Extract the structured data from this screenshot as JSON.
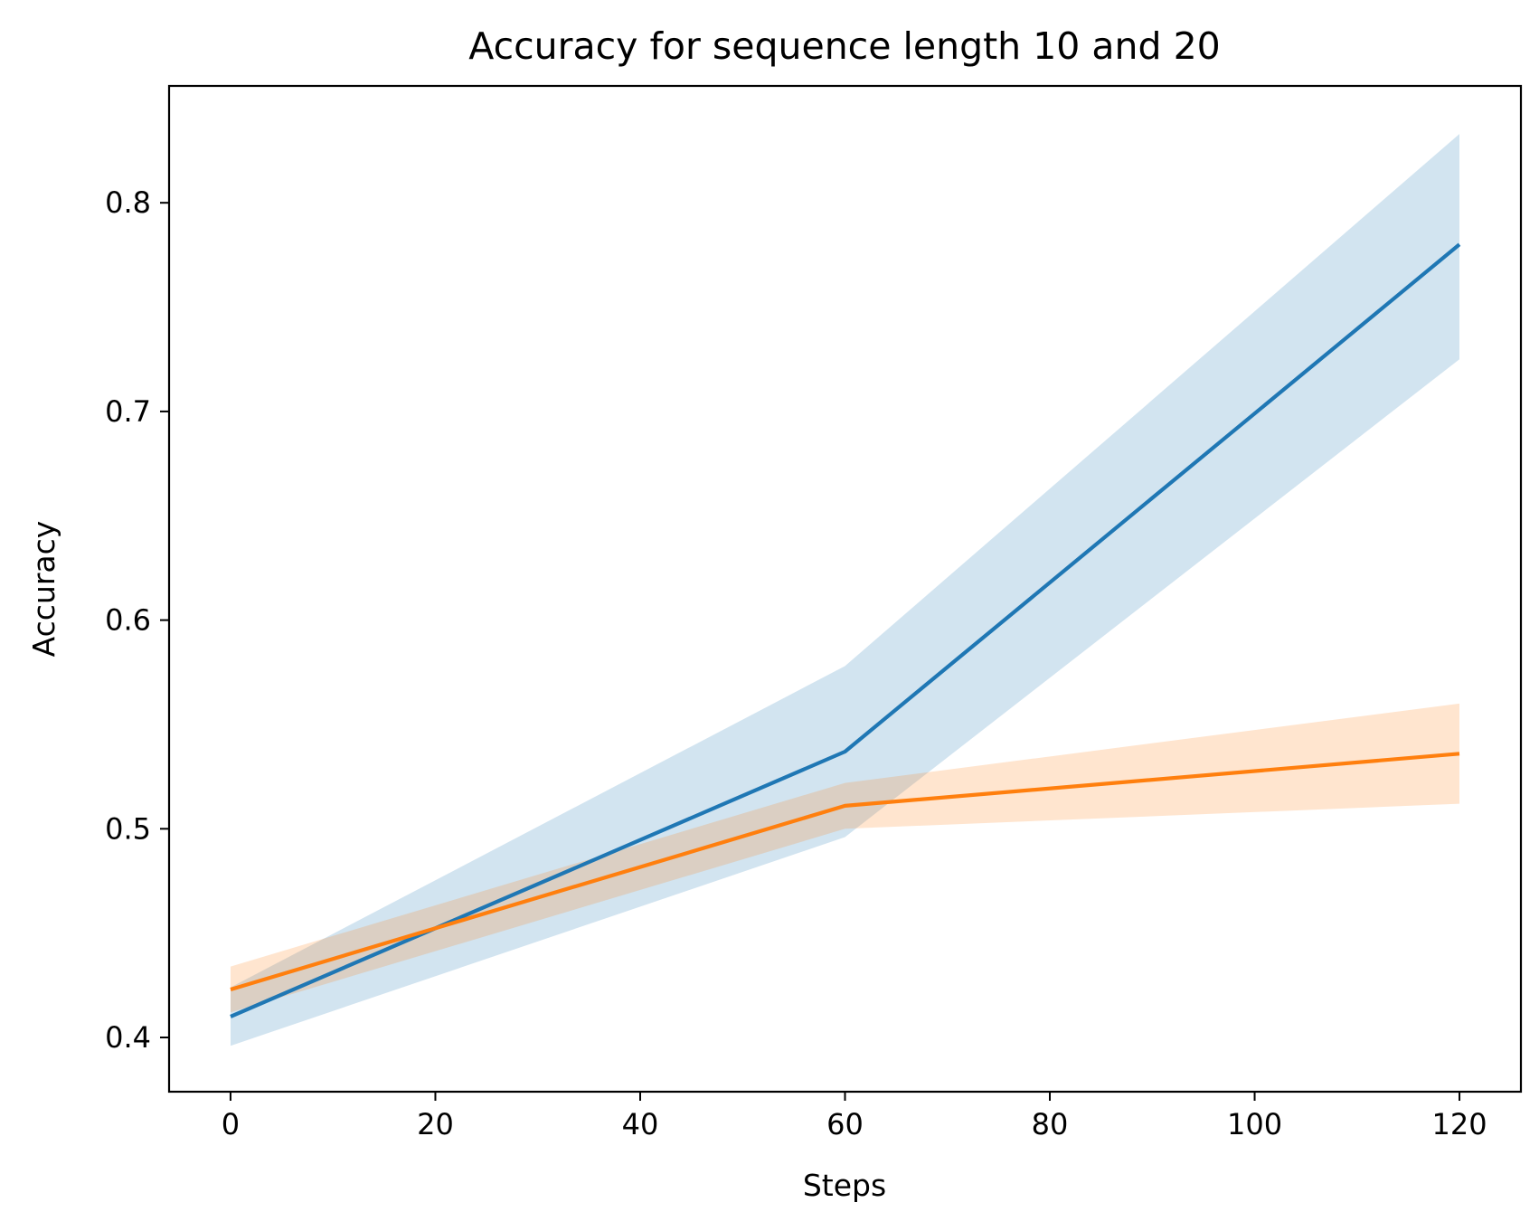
{
  "chart_data": {
    "type": "line",
    "title": "Accuracy for sequence length 10 and 20",
    "xlabel": "Steps",
    "ylabel": "Accuracy",
    "xlim": [
      -6,
      126
    ],
    "ylim": [
      0.374,
      0.856
    ],
    "xticks": [
      0,
      20,
      40,
      60,
      80,
      100,
      120
    ],
    "yticks": [
      0.4,
      0.5,
      0.6,
      0.7,
      0.8
    ],
    "xtick_labels": [
      "0",
      "20",
      "40",
      "60",
      "80",
      "100",
      "120"
    ],
    "ytick_labels": [
      "0.4",
      "0.5",
      "0.6",
      "0.7",
      "0.8"
    ],
    "grid": false,
    "legend": false,
    "series": [
      {
        "color": "#1f77b4",
        "band_color": "#1f77b4",
        "x": [
          0,
          60,
          120
        ],
        "y": [
          0.41,
          0.537,
          0.78
        ],
        "lower": [
          0.396,
          0.496,
          0.725
        ],
        "upper": [
          0.424,
          0.578,
          0.833
        ]
      },
      {
        "color": "#ff7f0e",
        "band_color": "#ff7f0e",
        "x": [
          0,
          60,
          120
        ],
        "y": [
          0.423,
          0.511,
          0.536
        ],
        "lower": [
          0.412,
          0.5,
          0.512
        ],
        "upper": [
          0.434,
          0.522,
          0.56
        ]
      }
    ]
  }
}
